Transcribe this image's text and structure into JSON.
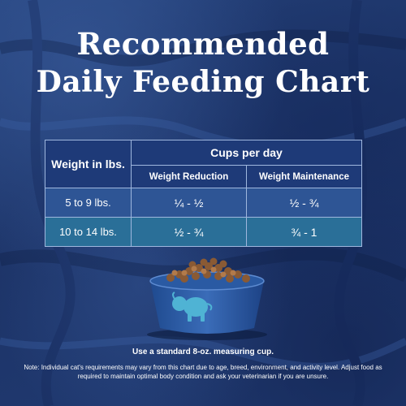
{
  "title": {
    "line1": "Recommended",
    "line2": "Daily Feeding Chart"
  },
  "table": {
    "header_weight": "Weight in lbs.",
    "header_cups": "Cups per day",
    "columns": [
      "Weight Reduction",
      "Weight Maintenance"
    ],
    "rows": [
      {
        "weight": "5 to 9 lbs.",
        "reduction": "¼ - ½",
        "maintenance": "½ - ¾"
      },
      {
        "weight": "10 to 14 lbs.",
        "reduction": "½ - ¾",
        "maintenance": "¾ - 1"
      }
    ]
  },
  "caption": "Use a standard 8-oz. measuring cup.",
  "note": "Note: Individual cat's requirements may vary from this chart due to age, breed, environment, and activity level. Adjust food as required to maintain optimal body condition and ask your veterinarian if you are unsure.",
  "colors": {
    "background": "#203a70",
    "header_cell": "#1e3a78",
    "row_1": "#2e5595",
    "row_2": "#2a6f98",
    "bowl": "#2f5ea8",
    "logo": "#4fb3d4"
  },
  "icons": [
    "measuring-bowl-icon",
    "buffalo-logo-icon"
  ]
}
